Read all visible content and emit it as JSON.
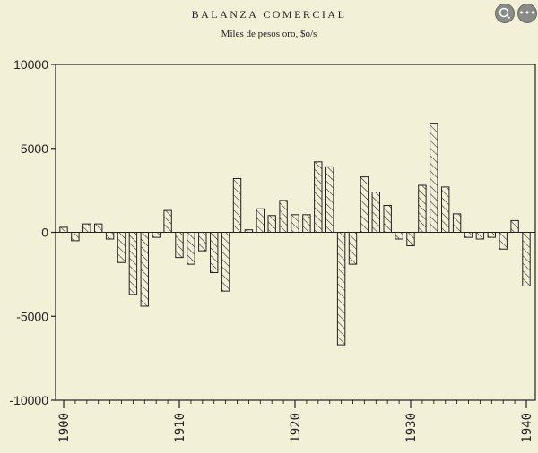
{
  "chart_data": {
    "type": "bar",
    "title": "BALANZA COMERCIAL",
    "subtitle": "Miles de pesos oro, $o/s",
    "xlabel": "",
    "ylabel": "",
    "ylim": [
      -10000,
      10000
    ],
    "yticks": [
      10000,
      5000,
      0,
      -5000,
      -10000
    ],
    "ytick_labels": [
      "10000",
      "5000",
      "0",
      "-5000",
      "-10000"
    ],
    "xlim": [
      1900,
      1940
    ],
    "xticks": [
      1900,
      1910,
      1920,
      1930,
      1940
    ],
    "xtick_labels": [
      "1900",
      "1910",
      "1920",
      "1930",
      "1940"
    ],
    "grid": false,
    "series": [
      {
        "years": [
          1900,
          1901,
          1902,
          1903,
          1904,
          1905,
          1906,
          1907,
          1908,
          1909,
          1910,
          1911,
          1912,
          1913,
          1914,
          1915,
          1916,
          1917,
          1918,
          1919,
          1920,
          1921,
          1922,
          1923,
          1924,
          1925,
          1926,
          1927,
          1928,
          1929,
          1930,
          1931,
          1932,
          1933,
          1934,
          1935,
          1936,
          1937,
          1938,
          1939,
          1940
        ],
        "values": [
          300,
          -500,
          500,
          500,
          -400,
          -1800,
          -3700,
          -4400,
          -300,
          1300,
          -1500,
          -1900,
          -1100,
          -2400,
          -3500,
          3200,
          150,
          1400,
          1000,
          1900,
          1050,
          1050,
          4200,
          3900,
          -6700,
          -1900,
          3300,
          2400,
          1600,
          -400,
          -800,
          2800,
          6500,
          2700,
          1100,
          -300,
          -400,
          -300,
          -1000,
          700,
          -3200
        ]
      }
    ]
  },
  "viewer": {
    "zoom_icon": "magnifier-icon",
    "more_icon": "ellipsis-icon",
    "more_label": "•••"
  }
}
